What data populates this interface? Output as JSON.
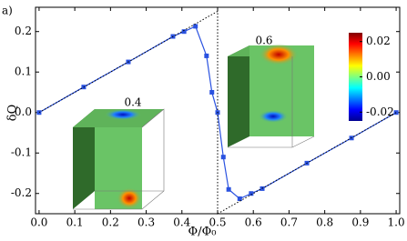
{
  "chart_data": {
    "type": "line",
    "panel_label": "a)",
    "x_label": "Φ/Φ₀",
    "y_label": "δQ",
    "xlim": [
      -0.01,
      1.01
    ],
    "ylim": [
      -0.25,
      0.26
    ],
    "xticks": [
      {
        "value": 0,
        "label": "0.0"
      },
      0.1,
      0.2,
      0.3,
      0.4,
      0.5,
      0.6,
      0.7,
      0.8,
      0.9,
      {
        "value": 1,
        "label": "1.0"
      }
    ],
    "yticks": [
      -0.2,
      -0.1,
      {
        "value": 0,
        "label": "0.0"
      },
      0.1,
      0.2
    ],
    "series": [
      {
        "color": "#2a52e0",
        "marker": "square",
        "style": "solid",
        "x": [
          0,
          0.125,
          0.25,
          0.375,
          0.406,
          0.438,
          0.469,
          0.484,
          0.5,
          0.516,
          0.531,
          0.562,
          0.594,
          0.625,
          0.75,
          0.875,
          1
        ],
        "values": [
          0,
          0.063,
          0.125,
          0.188,
          0.2,
          0.213,
          0.14,
          0.05,
          0.0,
          -0.11,
          -0.19,
          -0.213,
          -0.2,
          -0.188,
          -0.125,
          -0.063,
          0
        ]
      },
      {
        "color": "#000000",
        "marker": "none",
        "style": "dotted",
        "x": [
          0,
          0.5,
          0.5,
          1
        ],
        "values": [
          0,
          0.25,
          -0.25,
          0
        ]
      }
    ],
    "insets": [
      {
        "label": "0.4"
      },
      {
        "label": "0.6"
      }
    ],
    "colorbar": {
      "clim": [
        -0.025,
        0.025
      ],
      "ticks": [
        -0.02,
        {
          "value": 0,
          "label": "0.00"
        },
        0.02
      ]
    }
  }
}
